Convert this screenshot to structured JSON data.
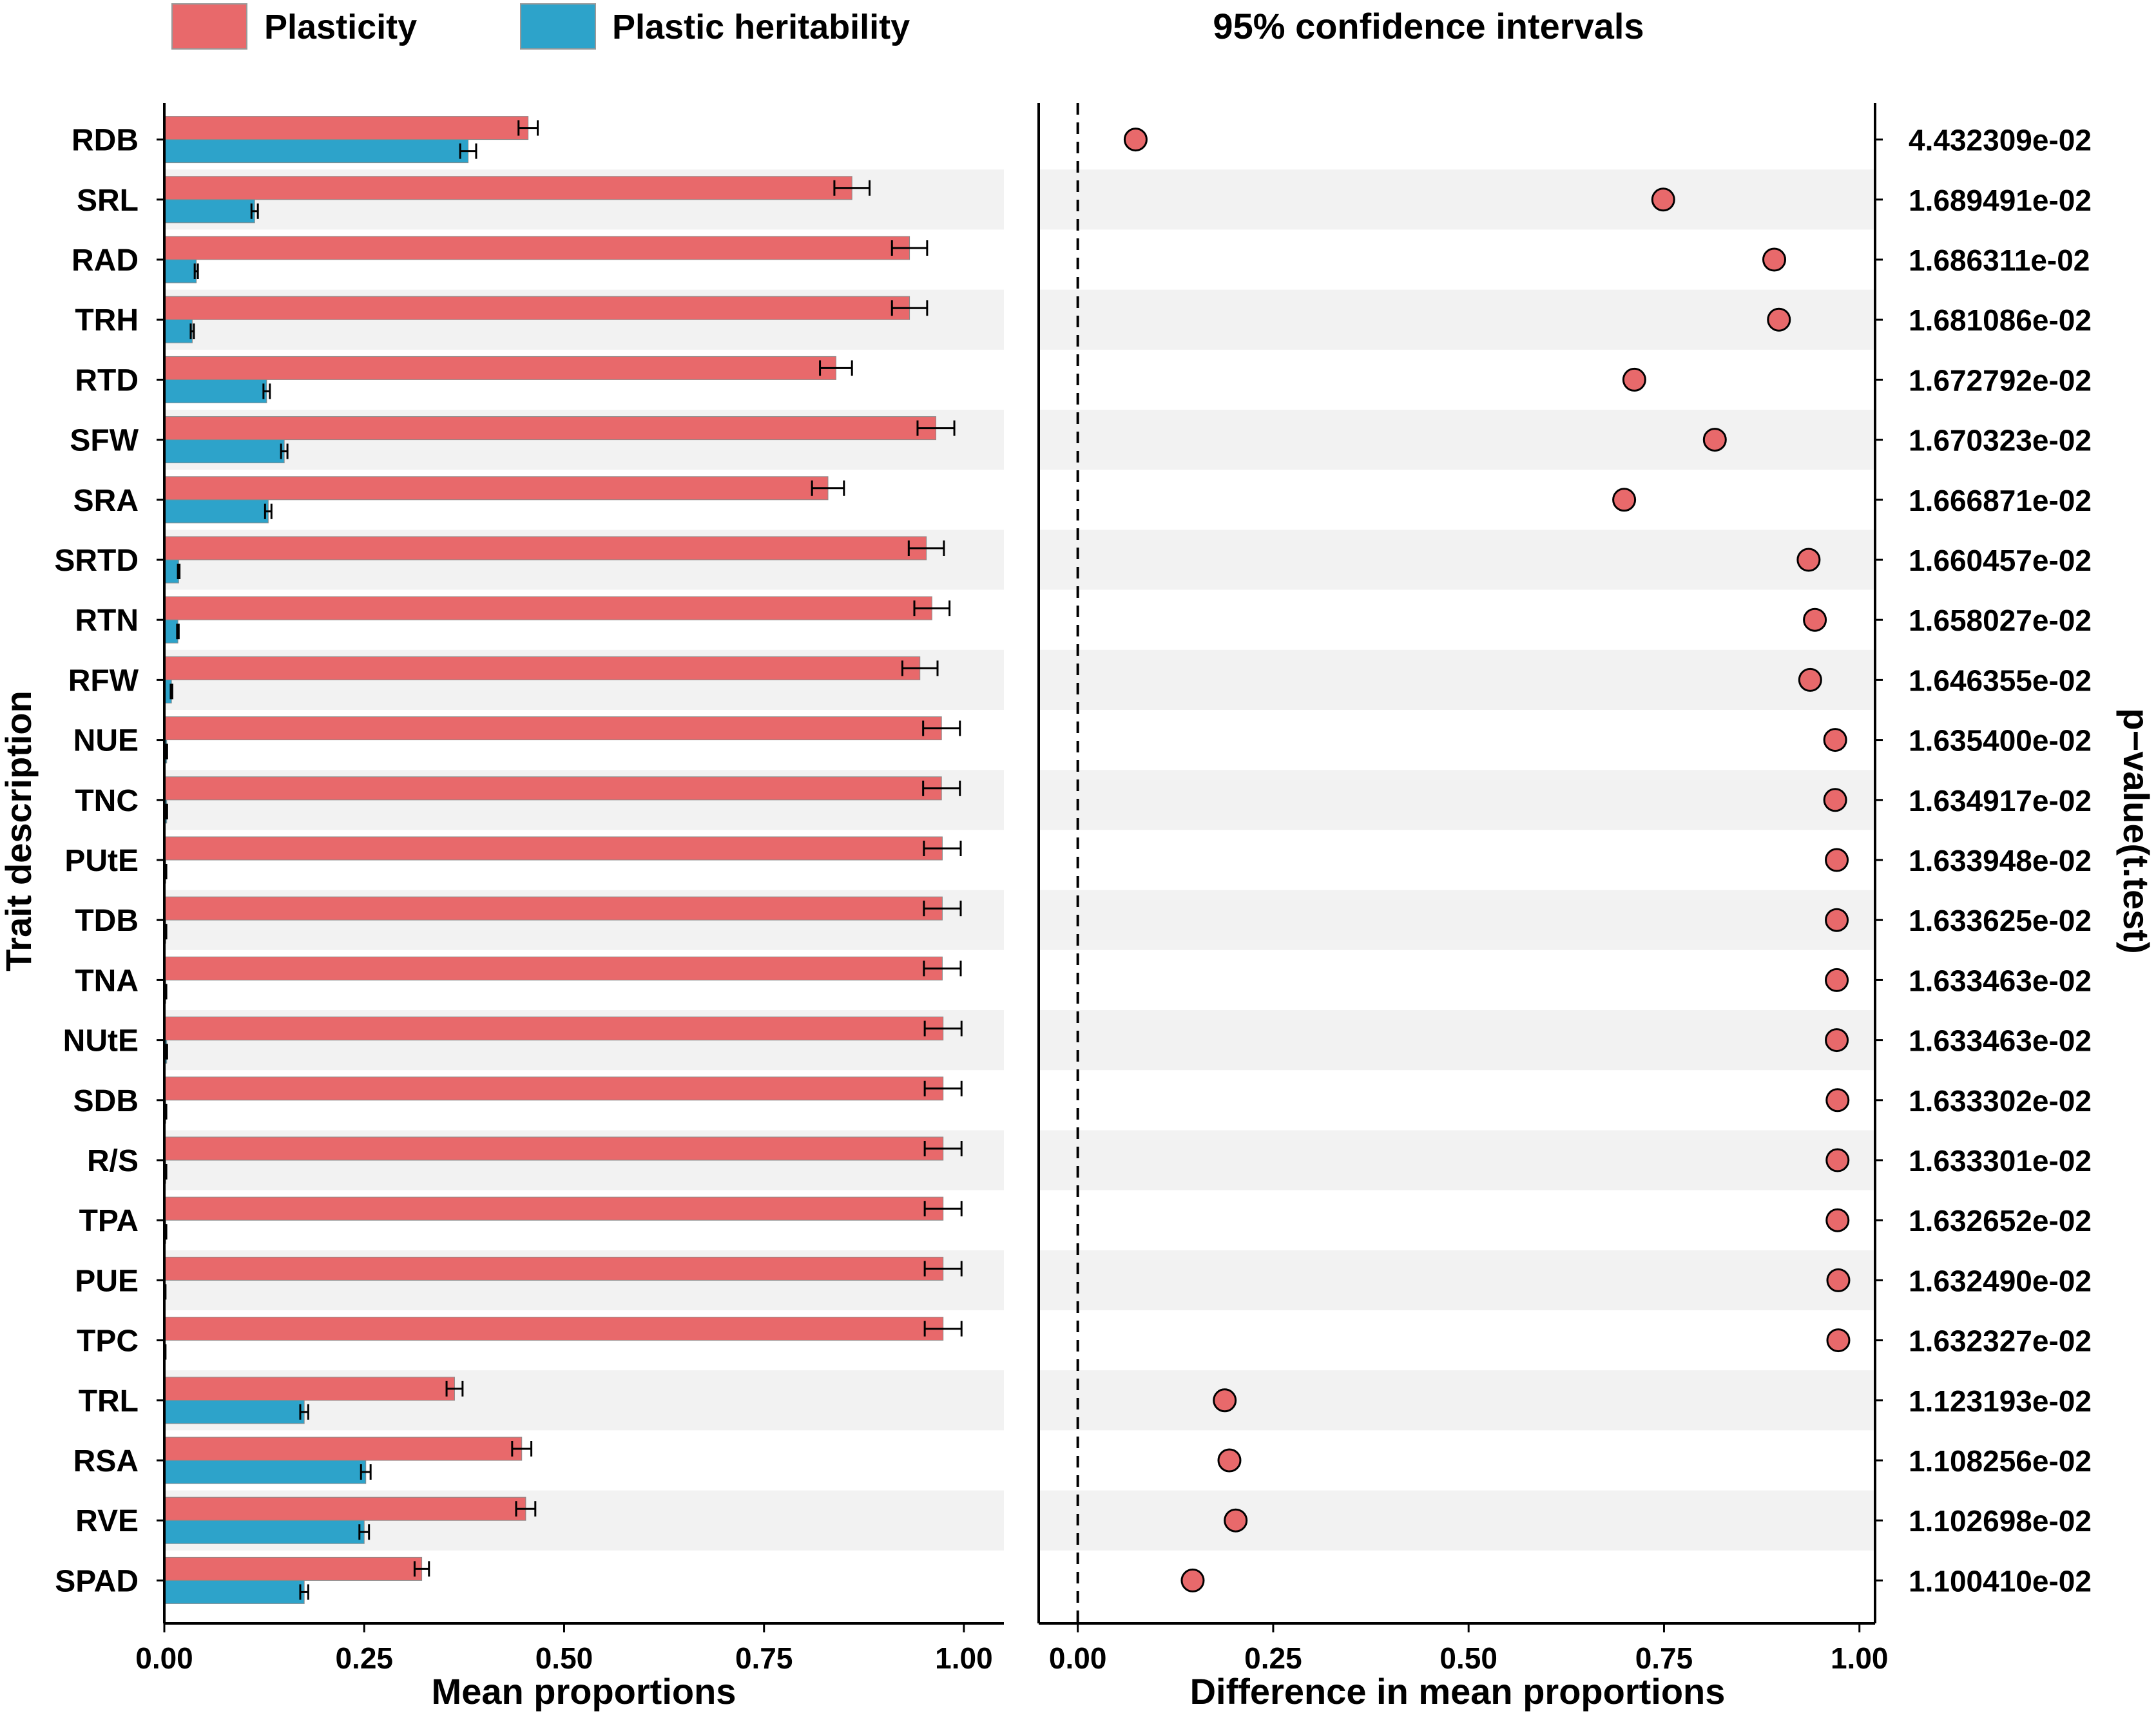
{
  "colors": {
    "plasticity": "#E8696B",
    "heritability": "#2DA3CA",
    "point": "#E8696B",
    "band": "#F2F2F2",
    "axis": "#000000"
  },
  "chart_data": [
    {
      "type": "bar",
      "title": "",
      "xlabel": "Mean proportions",
      "ylabel": "Trait description",
      "xlim": [
        0,
        1.05
      ],
      "x_ticks": [
        "0.00",
        "0.25",
        "0.50",
        "0.75",
        "1.00"
      ],
      "legend": {
        "placement": "top-left",
        "entries": [
          "Plasticity",
          "Plastic heritability"
        ]
      },
      "categories": [
        "RDB",
        "SRL",
        "RAD",
        "TRH",
        "RTD",
        "SFW",
        "SRA",
        "SRTD",
        "RTN",
        "RFW",
        "NUE",
        "TNC",
        "PUtE",
        "TDB",
        "TNA",
        "NUtE",
        "SDB",
        "R/S",
        "TPA",
        "PUE",
        "TPC",
        "TRL",
        "RSA",
        "RVE",
        "SPAD"
      ],
      "series": [
        {
          "name": "Plasticity",
          "values": [
            0.455,
            0.86,
            0.932,
            0.932,
            0.84,
            0.965,
            0.83,
            0.953,
            0.96,
            0.945,
            0.972,
            0.972,
            0.973,
            0.973,
            0.973,
            0.974,
            0.974,
            0.974,
            0.974,
            0.974,
            0.974,
            0.363,
            0.447,
            0.452,
            0.322
          ],
          "errors": [
            0.012,
            0.022,
            0.022,
            0.022,
            0.02,
            0.023,
            0.02,
            0.022,
            0.022,
            0.022,
            0.023,
            0.023,
            0.023,
            0.023,
            0.023,
            0.023,
            0.023,
            0.023,
            0.023,
            0.023,
            0.023,
            0.01,
            0.012,
            0.012,
            0.009
          ]
        },
        {
          "name": "Plastic heritability",
          "values": [
            0.38,
            0.113,
            0.04,
            0.035,
            0.128,
            0.15,
            0.13,
            0.018,
            0.017,
            0.009,
            0.003,
            0.003,
            0.002,
            0.002,
            0.002,
            0.003,
            0.002,
            0.002,
            0.002,
            0.001,
            0.001,
            0.175,
            0.252,
            0.25,
            0.175
          ],
          "errors": [
            0.01,
            0.004,
            0.002,
            0.002,
            0.004,
            0.004,
            0.004,
            0.001,
            0.001,
            0.001,
            0.0005,
            0.0005,
            0.0005,
            0.0005,
            0.0005,
            0.0005,
            0.0005,
            0.0005,
            0.0005,
            0.0005,
            0.0005,
            0.005,
            0.006,
            0.006,
            0.005
          ]
        }
      ]
    },
    {
      "type": "scatter",
      "title": "95% confidence intervals",
      "xlabel": "Difference in mean proportions",
      "ylabel": "p−value(t.test)",
      "xlim": [
        -0.05,
        1.02
      ],
      "x_ticks": [
        "0.00",
        "0.25",
        "0.50",
        "0.75",
        "1.00"
      ],
      "reference_line": 0,
      "categories": [
        "RDB",
        "SRL",
        "RAD",
        "TRH",
        "RTD",
        "SFW",
        "SRA",
        "SRTD",
        "RTN",
        "RFW",
        "NUE",
        "TNC",
        "PUtE",
        "TDB",
        "TNA",
        "NUtE",
        "SDB",
        "R/S",
        "TPA",
        "PUE",
        "TPC",
        "TRL",
        "RSA",
        "RVE",
        "SPAD"
      ],
      "values": [
        0.074,
        0.749,
        0.891,
        0.897,
        0.712,
        0.815,
        0.699,
        0.935,
        0.943,
        0.937,
        0.969,
        0.969,
        0.971,
        0.971,
        0.971,
        0.971,
        0.972,
        0.972,
        0.972,
        0.973,
        0.973,
        0.188,
        0.194,
        0.202,
        0.147
      ],
      "p_values": [
        "4.432309e-02",
        "1.689491e-02",
        "1.686311e-02",
        "1.681086e-02",
        "1.672792e-02",
        "1.670323e-02",
        "1.666871e-02",
        "1.660457e-02",
        "1.658027e-02",
        "1.646355e-02",
        "1.635400e-02",
        "1.634917e-02",
        "1.633948e-02",
        "1.633625e-02",
        "1.633463e-02",
        "1.633463e-02",
        "1.633302e-02",
        "1.633301e-02",
        "1.632652e-02",
        "1.632490e-02",
        "1.632327e-02",
        "1.123193e-02",
        "1.108256e-02",
        "1.102698e-02",
        "1.100410e-02"
      ]
    }
  ]
}
